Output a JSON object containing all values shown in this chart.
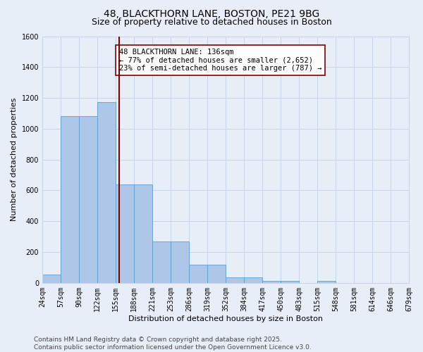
{
  "title_line1": "48, BLACKTHORN LANE, BOSTON, PE21 9BG",
  "title_line2": "Size of property relative to detached houses in Boston",
  "xlabel": "Distribution of detached houses by size in Boston",
  "ylabel": "Number of detached properties",
  "bin_labels": [
    "24sqm",
    "57sqm",
    "90sqm",
    "122sqm",
    "155sqm",
    "188sqm",
    "221sqm",
    "253sqm",
    "286sqm",
    "319sqm",
    "352sqm",
    "384sqm",
    "417sqm",
    "450sqm",
    "483sqm",
    "515sqm",
    "548sqm",
    "581sqm",
    "614sqm",
    "646sqm",
    "679sqm"
  ],
  "bar_values": [
    55,
    1080,
    1080,
    1175,
    640,
    640,
    270,
    270,
    120,
    120,
    35,
    35,
    15,
    15,
    0,
    15,
    0,
    0,
    0,
    0
  ],
  "bar_color": "#aec6e8",
  "bar_edgecolor": "#5a9fd4",
  "grid_color": "#c8d4e8",
  "background_color": "#e8eef8",
  "vline_position": 4.18,
  "vline_color": "#800000",
  "annotation_text": "48 BLACKTHORN LANE: 136sqm\n← 77% of detached houses are smaller (2,652)\n23% of semi-detached houses are larger (787) →",
  "annotation_box_facecolor": "white",
  "annotation_box_edgecolor": "#800000",
  "ylim": [
    0,
    1600
  ],
  "yticks": [
    0,
    200,
    400,
    600,
    800,
    1000,
    1200,
    1400,
    1600
  ],
  "footnote_line1": "Contains HM Land Registry data © Crown copyright and database right 2025.",
  "footnote_line2": "Contains public sector information licensed under the Open Government Licence v3.0.",
  "title_fontsize": 10,
  "subtitle_fontsize": 9,
  "axis_label_fontsize": 8,
  "tick_fontsize": 7,
  "annotation_fontsize": 7.5,
  "footnote_fontsize": 6.5
}
